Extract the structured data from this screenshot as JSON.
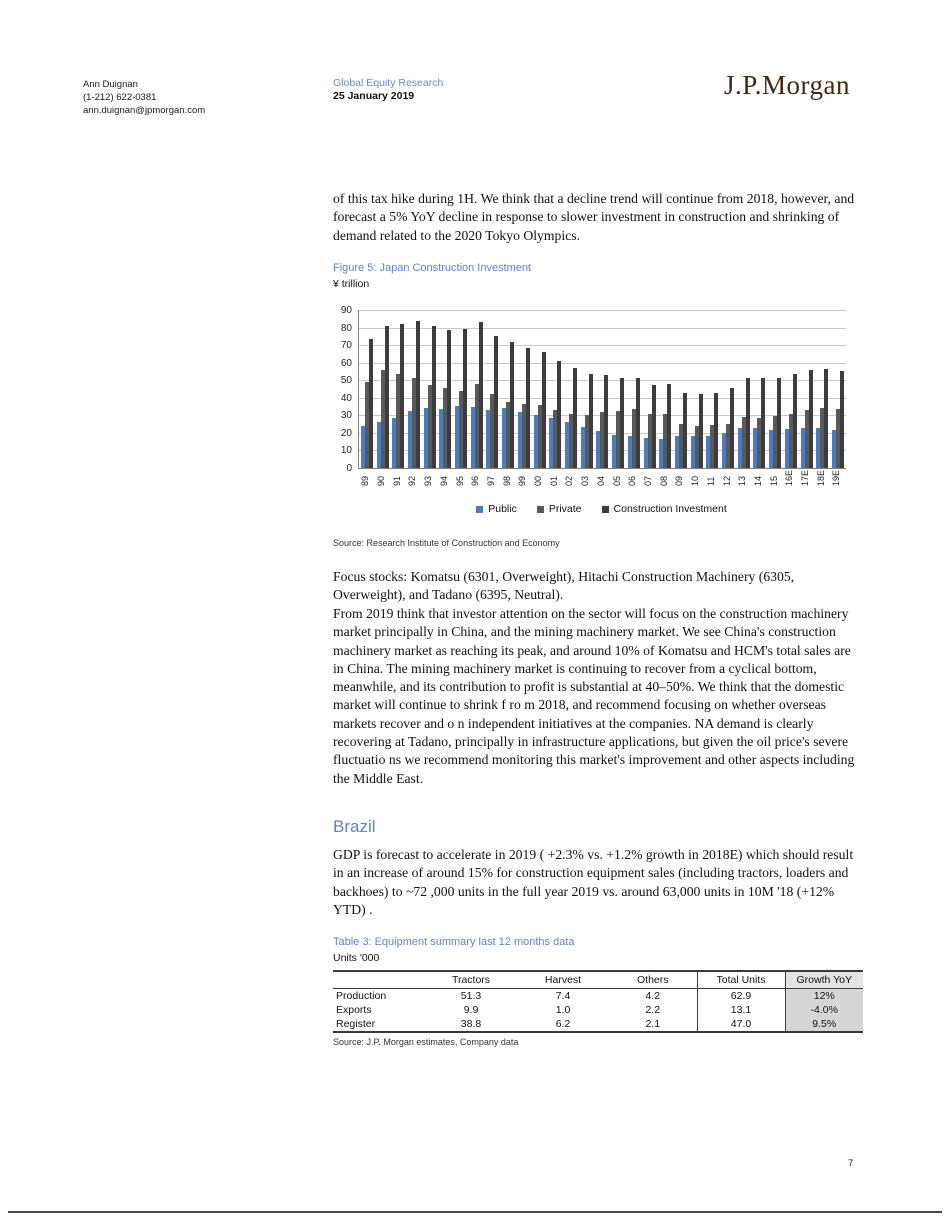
{
  "header": {
    "analyst": {
      "name": "Ann Duignan",
      "phone": "(1-212) 622-0381",
      "email": "ann.duignan@jpmorgan.com"
    },
    "division": "Global Equity Research",
    "date": "25 January 2019",
    "brand": "J.P.Morgan"
  },
  "intro_paragraph": "of this tax hike during 1H.  We think that a decline trend will continue from 2018, however, and forecast a 5% YoY decline in response to slower investment in construction and shrinking of demand related to the 2020 Tokyo Olympics.",
  "figure": {
    "caption": "Figure 5: Japan Construction Investment",
    "unit_label": "¥ trillion",
    "source": "Source: Research Institute of Construction and Economy"
  },
  "chart_data": {
    "type": "bar",
    "title": "Figure 5: Japan Construction Investment",
    "ylabel": "¥ trillion",
    "ylim": [
      0,
      90
    ],
    "ytick_interval": 10,
    "grid": true,
    "legend_position": "bottom",
    "categories": [
      "89",
      "90",
      "91",
      "92",
      "93",
      "94",
      "95",
      "96",
      "97",
      "98",
      "99",
      "00",
      "01",
      "02",
      "03",
      "04",
      "05",
      "06",
      "07",
      "08",
      "09",
      "10",
      "11",
      "12",
      "13",
      "14",
      "15",
      "16E",
      "17E",
      "18E",
      "19E"
    ],
    "series": [
      {
        "name": "Public",
        "color": "#4a7ebb",
        "values": [
          24,
          26,
          28.5,
          32.5,
          34,
          33.5,
          35.5,
          35,
          33,
          34,
          32,
          30,
          28.5,
          26,
          23.5,
          21,
          19,
          18,
          17,
          16.5,
          18,
          18,
          18.5,
          20,
          23,
          23,
          21.5,
          22.5,
          23,
          23,
          21.5
        ]
      },
      {
        "name": "Private",
        "color": "#595959",
        "values": [
          49,
          56,
          53.5,
          51.5,
          47.5,
          45.5,
          44,
          48,
          42,
          37.5,
          36.5,
          36,
          33,
          31,
          30,
          32,
          32.5,
          33.5,
          31,
          31,
          25,
          24,
          24.5,
          25,
          29,
          28.5,
          29.5,
          31,
          33,
          34,
          33.5
        ]
      },
      {
        "name": "Construction Investment",
        "color": "#3c3c3c",
        "values": [
          73.5,
          81,
          82,
          84,
          81,
          78.5,
          79,
          83,
          75,
          71.5,
          68.5,
          66,
          61,
          57,
          53.5,
          53,
          51.5,
          51.5,
          47.5,
          48,
          43,
          42,
          43,
          45.5,
          51,
          51,
          51,
          53.5,
          56,
          56.5,
          55
        ]
      }
    ]
  },
  "body": {
    "focus_paragraph": "Focus stocks: Komatsu (6301, Overweight), Hitachi Construction Machinery (6305, Overweight), and Tadano (6395, Neutral).",
    "outlook_paragraph": "From 2019 think that investor attention on the sector will focus on the construction machinery market principally in China, and the mining machinery market.  We see China's construction machinery market as reaching its peak, and around 10% of Komatsu and HCM's total sales are in China.    The mining machinery market is continuing to recover from a cyclical bottom, meanwhile, and its contribution to profit is substantial at 40–50%.  We think that the domestic market will continue to shrink f ro m 2018, and recommend focusing on whether overseas markets recover and o n independent initiatives at the companies.  NA demand is clearly recovering at Tadano, principally in infrastructure applications, but given the oil price's severe fluctuatio ns we recommend monitoring this market's improvement and other aspects including the Middle East.",
    "brazil_heading": "Brazil",
    "brazil_paragraph": "GDP is forecast to accelerate in 2019  ( +2.3% vs. +1.2% growth in 2018E) which should result in an increase of around 15% for construction equipment sales (including tractors, loaders and backhoes) to ~72  ,000 units in the full year 2019 vs. around 63,000 units in 10M  '18 (+12% YTD) ."
  },
  "table": {
    "caption": "Table 3: Equipment summary last 12 months data",
    "unit_label": "Units '000",
    "columns": [
      "",
      "Tractors",
      "Harvest",
      "Others",
      "Total Units",
      "Growth  YoY"
    ],
    "rows": [
      {
        "label": "Production",
        "values": [
          "51.3",
          "7.4",
          "4.2",
          "62.9",
          "12%"
        ]
      },
      {
        "label": "Exports",
        "values": [
          "9.9",
          "1.0",
          "2.2",
          "13.1",
          "-4.0%"
        ]
      },
      {
        "label": "Register",
        "values": [
          "38.8",
          "6.2",
          "2.1",
          "47.0",
          "9.5%"
        ]
      }
    ],
    "source": "Source: J.P. Morgan estimates, Company data"
  },
  "page": {
    "number": "7"
  },
  "colors": {
    "accent_blue": "#6283c4",
    "brand_brown": "#45260e",
    "grid": "#c9c9c9",
    "axis": "#808080"
  }
}
